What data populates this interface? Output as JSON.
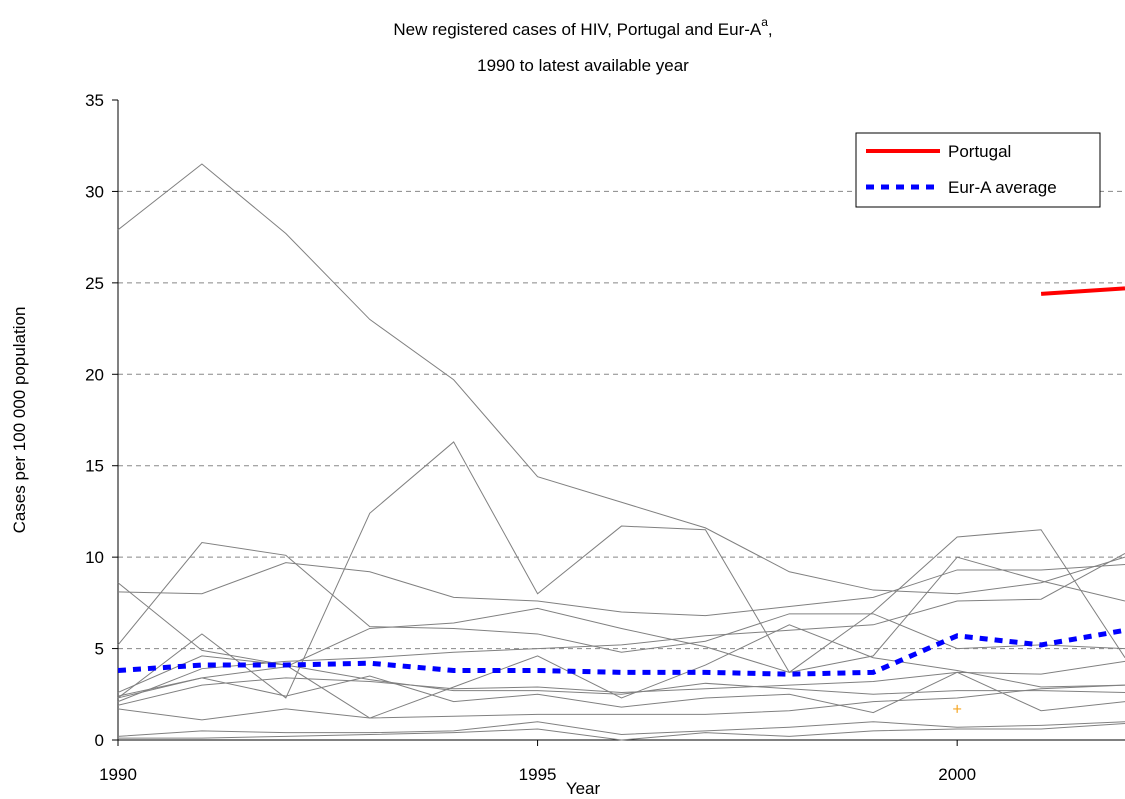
{
  "chart_data": {
    "type": "line",
    "title": {
      "text": "New registered cases of HIV, Portugal and Eur-A",
      "superscript": "a",
      "suffix": ","
    },
    "subtitle": "1990 to latest available year",
    "x_label": "Year",
    "y_label": "Cases per 100 000 population",
    "x": [
      1990,
      1991,
      1992,
      1993,
      1994,
      1995,
      1996,
      1997,
      1998,
      1999,
      2000,
      2001,
      2002
    ],
    "xlim": [
      1990,
      2002
    ],
    "xticks": [
      1990,
      1995,
      2000
    ],
    "ylim": [
      0,
      35
    ],
    "yticks": [
      0,
      5,
      10,
      15,
      20,
      25,
      30,
      35
    ],
    "grid": true,
    "legend": "upper right",
    "series": [
      {
        "color": "#808080",
        "values": [
          27.9,
          31.5,
          27.7,
          23.0,
          19.7,
          14.4,
          13.0,
          11.6,
          9.2,
          8.2,
          8.0,
          8.6,
          10.0
        ]
      },
      {
        "color": "#808080",
        "values": [
          2.3,
          5.8,
          2.3,
          12.4,
          16.3,
          8.0,
          11.7,
          11.5,
          3.7,
          7.0,
          11.1,
          11.5,
          4.5
        ]
      },
      {
        "color": "#808080",
        "values": [
          5.2,
          10.8,
          10.1,
          6.2,
          6.1,
          5.8,
          4.8,
          5.4,
          6.9,
          6.9,
          5.0,
          5.2,
          5.0
        ]
      },
      {
        "color": "#808080",
        "values": [
          8.1,
          8.0,
          9.7,
          9.2,
          7.8,
          7.6,
          7.0,
          6.8,
          7.3,
          7.8,
          9.3,
          9.3,
          9.6
        ]
      },
      {
        "color": "#808080",
        "values": [
          8.6,
          4.9,
          4.1,
          1.2,
          2.9,
          4.6,
          2.3,
          4.1,
          6.3,
          4.5,
          3.8,
          2.9,
          3.0
        ]
      },
      {
        "color": "#808080",
        "values": [
          2.4,
          3.4,
          4.0,
          6.1,
          6.4,
          7.2,
          6.1,
          5.1,
          3.7,
          4.6,
          10.0,
          8.7,
          7.6
        ]
      },
      {
        "color": "#808080",
        "values": [
          2.1,
          3.9,
          4.3,
          4.5,
          4.8,
          5.0,
          5.2,
          5.7,
          6.0,
          6.3,
          7.6,
          7.7,
          10.2
        ]
      },
      {
        "color": "#808080",
        "values": [
          1.9,
          3.0,
          3.4,
          3.2,
          2.8,
          2.9,
          2.6,
          2.8,
          3.0,
          3.2,
          3.7,
          3.6,
          4.3
        ]
      },
      {
        "color": "#808080",
        "values": [
          1.7,
          1.1,
          1.7,
          1.2,
          1.3,
          1.4,
          1.4,
          1.4,
          1.6,
          2.1,
          2.3,
          2.8,
          3.0
        ]
      },
      {
        "color": "#808080",
        "values": [
          2.3,
          3.4,
          2.4,
          3.5,
          2.1,
          2.5,
          1.8,
          2.3,
          2.5,
          1.5,
          3.7,
          1.6,
          2.1
        ]
      },
      {
        "color": "#808080",
        "values": [
          0.2,
          0.5,
          0.4,
          0.4,
          0.5,
          1.0,
          0.3,
          0.5,
          0.7,
          1.0,
          0.7,
          0.8,
          1.0
        ]
      },
      {
        "color": "#808080",
        "values": [
          0.1,
          0.1,
          0.2,
          0.3,
          0.4,
          0.6,
          0.0,
          0.4,
          0.2,
          0.5,
          0.6,
          0.6,
          0.9
        ]
      },
      {
        "color": "#808080",
        "values": [
          2.6,
          4.6,
          4.1,
          3.3,
          2.7,
          2.7,
          2.5,
          3.1,
          2.8,
          2.5,
          2.7,
          2.7,
          2.6
        ]
      },
      {
        "color": "#f5a623",
        "values": [
          null,
          null,
          null,
          null,
          null,
          null,
          null,
          null,
          null,
          null,
          1.7,
          null,
          null
        ]
      },
      {
        "name": "Portugal",
        "color": "#ff0000",
        "width": 4,
        "values": [
          null,
          null,
          null,
          null,
          null,
          null,
          null,
          null,
          null,
          null,
          null,
          24.4,
          24.7
        ]
      },
      {
        "name": "Eur-A average",
        "color": "#0000ff",
        "width": 5,
        "dash": true,
        "values": [
          3.8,
          4.1,
          4.1,
          4.2,
          3.8,
          3.8,
          3.7,
          3.7,
          3.6,
          3.7,
          5.7,
          5.2,
          6.0
        ]
      }
    ]
  }
}
